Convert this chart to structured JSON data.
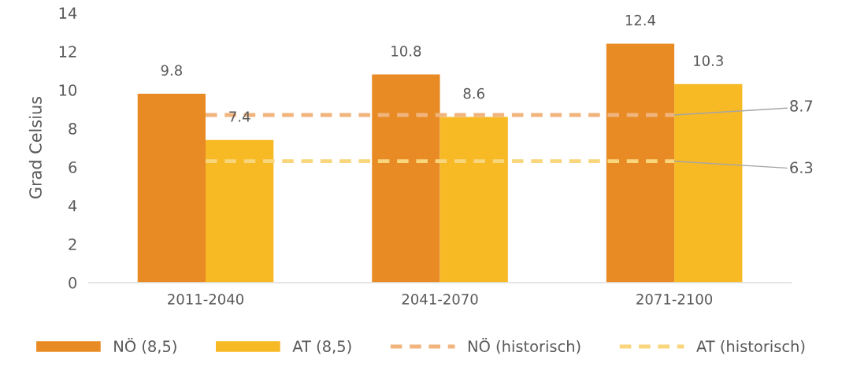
{
  "chart_data": {
    "type": "bar",
    "ylabel": "Grad Celsius",
    "categories": [
      "2011-2040",
      "2041-2070",
      "2071-2100"
    ],
    "series": [
      {
        "name": "NÖ (8,5)",
        "color": "#e88b25",
        "values": [
          9.8,
          10.8,
          12.4
        ]
      },
      {
        "name": "AT (8,5)",
        "color": "#f7b924",
        "values": [
          7.4,
          8.6,
          10.3
        ]
      },
      {
        "name": "NÖ (historisch)",
        "type": "line",
        "line_style": "dashed",
        "color": "#f0b47c",
        "values": [
          8.7,
          8.7,
          8.7
        ],
        "value_labels": [
          null,
          null,
          "8.7"
        ]
      },
      {
        "name": "AT (historisch)",
        "type": "line",
        "line_style": "dashed",
        "color": "#f9d57c",
        "values": [
          6.3,
          6.3,
          6.3
        ],
        "value_labels": [
          null,
          null,
          "6.3"
        ]
      }
    ],
    "data_labels": true,
    "ylim": [
      0,
      14
    ],
    "yticks": [
      0,
      2,
      4,
      6,
      8,
      10,
      12,
      14
    ],
    "grid": false,
    "legend": "bottom"
  }
}
